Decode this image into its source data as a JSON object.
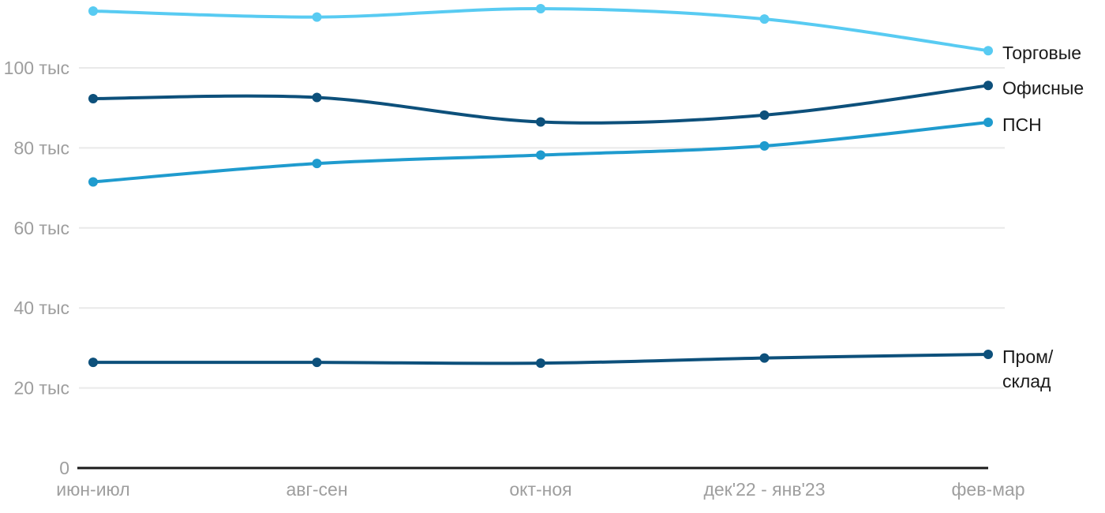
{
  "chart_data": {
    "type": "line",
    "title": "",
    "unit": "тыс",
    "categories": [
      "июн-июл",
      "авг-сен",
      "окт-ноя",
      "дек'22 - янв'23",
      "фев-мар"
    ],
    "y_ticks": [
      {
        "value": 20,
        "label": "20 тыс"
      },
      {
        "value": 40,
        "label": "40 тыс"
      },
      {
        "value": 60,
        "label": "60 тыс"
      },
      {
        "value": 80,
        "label": "80 тыс"
      },
      {
        "value": 100,
        "label": "100 тыс"
      }
    ],
    "y_zero_label": "0",
    "ylim": [
      0,
      120
    ],
    "grid": true,
    "legend_position": "labels-at-line-ends-right",
    "series": [
      {
        "name": "Торговые",
        "key": "retail",
        "color": "#58CBF2",
        "values": [
          114.2,
          112.7,
          114.8,
          112.2,
          104.3
        ],
        "label_lines": [
          "Торговые"
        ]
      },
      {
        "name": "Офисные",
        "key": "office",
        "color": "#0D507B",
        "values": [
          92.3,
          92.6,
          86.5,
          88.2,
          95.6
        ],
        "label_lines": [
          "Офисные"
        ]
      },
      {
        "name": "ПСН",
        "key": "psn",
        "color": "#1F9BCE",
        "values": [
          71.5,
          76.1,
          78.2,
          80.5,
          86.4
        ],
        "label_lines": [
          "ПСН"
        ]
      },
      {
        "name": "Пром/склад",
        "key": "industrial",
        "color": "#0D507B",
        "values": [
          26.4,
          26.4,
          26.2,
          27.5,
          28.4
        ],
        "label_lines": [
          "Пром/",
          "склад"
        ]
      }
    ]
  },
  "colors": {
    "background": "#FFFFFF",
    "grid": "#E9E9E9",
    "axis": "#1A1A1A",
    "axis_text": "#9E9E9E",
    "label_text": "#1A1A1A"
  }
}
